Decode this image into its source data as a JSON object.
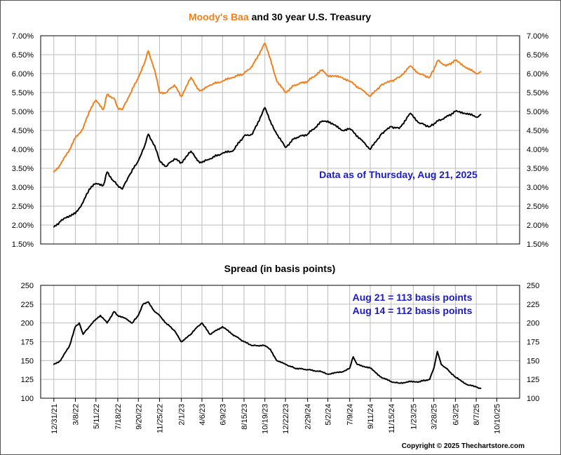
{
  "chart_data": [
    {
      "type": "line",
      "title": "Moody's Baa and 30 year U.S. Treasury",
      "title_parts": {
        "highlight": "Moody's Baa",
        "rest": " and 30 year U.S. Treasury"
      },
      "y_tick_labels": [
        "1.50%",
        "2.00%",
        "2.50%",
        "3.00%",
        "3.50%",
        "4.00%",
        "4.50%",
        "5.00%",
        "5.50%",
        "6.00%",
        "6.50%",
        "7.00%"
      ],
      "ylim": [
        1.5,
        7.0
      ],
      "grid": true,
      "annotation": "Data as of Thursday, Aug 21, 2025",
      "series": [
        {
          "name": "Moody's Baa",
          "color": "#F07F1E",
          "points": [
            [
              "2021-12-31",
              3.4
            ],
            [
              "2022-01-21",
              3.6
            ],
            [
              "2022-02-18",
              4.0
            ],
            [
              "2022-03-08",
              4.3
            ],
            [
              "2022-04-01",
              4.55
            ],
            [
              "2022-04-20",
              5.0
            ],
            [
              "2022-05-11",
              5.3
            ],
            [
              "2022-06-03",
              5.05
            ],
            [
              "2022-06-15",
              5.45
            ],
            [
              "2022-07-06",
              5.35
            ],
            [
              "2022-07-18",
              5.1
            ],
            [
              "2022-08-01",
              5.05
            ],
            [
              "2022-08-22",
              5.4
            ],
            [
              "2022-09-20",
              5.9
            ],
            [
              "2022-10-10",
              6.3
            ],
            [
              "2022-10-21",
              6.6
            ],
            [
              "2022-11-10",
              6.1
            ],
            [
              "2022-11-25",
              5.5
            ],
            [
              "2022-12-15",
              5.5
            ],
            [
              "2023-01-10",
              5.7
            ],
            [
              "2023-02-01",
              5.4
            ],
            [
              "2023-03-03",
              5.9
            ],
            [
              "2023-03-23",
              5.6
            ],
            [
              "2023-04-06",
              5.55
            ],
            [
              "2023-05-01",
              5.7
            ],
            [
              "2023-06-09",
              5.8
            ],
            [
              "2023-07-10",
              5.9
            ],
            [
              "2023-08-15",
              6.0
            ],
            [
              "2023-09-10",
              6.2
            ],
            [
              "2023-10-19",
              6.8
            ],
            [
              "2023-11-05",
              6.4
            ],
            [
              "2023-11-25",
              5.8
            ],
            [
              "2023-12-22",
              5.5
            ],
            [
              "2024-01-20",
              5.7
            ],
            [
              "2024-02-29",
              5.8
            ],
            [
              "2024-04-15",
              6.1
            ],
            [
              "2024-05-02",
              5.95
            ],
            [
              "2024-06-15",
              5.9
            ],
            [
              "2024-07-09",
              5.8
            ],
            [
              "2024-08-20",
              5.55
            ],
            [
              "2024-09-11",
              5.4
            ],
            [
              "2024-10-15",
              5.7
            ],
            [
              "2024-11-15",
              5.8
            ],
            [
              "2024-12-10",
              5.9
            ],
            [
              "2025-01-14",
              6.2
            ],
            [
              "2025-02-10",
              6.0
            ],
            [
              "2025-03-15",
              5.9
            ],
            [
              "2025-04-10",
              6.35
            ],
            [
              "2025-05-05",
              6.2
            ],
            [
              "2025-06-03",
              6.35
            ],
            [
              "2025-07-10",
              6.15
            ],
            [
              "2025-08-07",
              6.0
            ],
            [
              "2025-08-21",
              6.05
            ]
          ]
        },
        {
          "name": "30 year U.S. Treasury",
          "color": "#000000",
          "points": [
            [
              "2021-12-31",
              1.95
            ],
            [
              "2022-01-21",
              2.1
            ],
            [
              "2022-02-18",
              2.25
            ],
            [
              "2022-03-08",
              2.3
            ],
            [
              "2022-04-01",
              2.6
            ],
            [
              "2022-04-20",
              2.95
            ],
            [
              "2022-05-11",
              3.1
            ],
            [
              "2022-06-03",
              3.05
            ],
            [
              "2022-06-15",
              3.4
            ],
            [
              "2022-07-06",
              3.15
            ],
            [
              "2022-07-18",
              3.05
            ],
            [
              "2022-08-01",
              2.95
            ],
            [
              "2022-08-22",
              3.3
            ],
            [
              "2022-09-20",
              3.7
            ],
            [
              "2022-10-10",
              4.1
            ],
            [
              "2022-10-21",
              4.4
            ],
            [
              "2022-11-10",
              4.1
            ],
            [
              "2022-11-25",
              3.7
            ],
            [
              "2022-12-15",
              3.55
            ],
            [
              "2023-01-10",
              3.75
            ],
            [
              "2023-02-01",
              3.65
            ],
            [
              "2023-03-03",
              3.95
            ],
            [
              "2023-03-23",
              3.7
            ],
            [
              "2023-04-06",
              3.65
            ],
            [
              "2023-05-01",
              3.75
            ],
            [
              "2023-06-09",
              3.9
            ],
            [
              "2023-07-10",
              3.95
            ],
            [
              "2023-08-15",
              4.35
            ],
            [
              "2023-09-10",
              4.4
            ],
            [
              "2023-10-19",
              5.1
            ],
            [
              "2023-11-05",
              4.75
            ],
            [
              "2023-11-25",
              4.4
            ],
            [
              "2023-12-22",
              4.05
            ],
            [
              "2024-01-20",
              4.3
            ],
            [
              "2024-02-29",
              4.4
            ],
            [
              "2024-04-15",
              4.75
            ],
            [
              "2024-05-02",
              4.75
            ],
            [
              "2024-06-15",
              4.5
            ],
            [
              "2024-07-09",
              4.55
            ],
            [
              "2024-08-20",
              4.2
            ],
            [
              "2024-09-11",
              4.0
            ],
            [
              "2024-10-15",
              4.4
            ],
            [
              "2024-11-15",
              4.6
            ],
            [
              "2024-12-10",
              4.55
            ],
            [
              "2025-01-14",
              4.95
            ],
            [
              "2025-02-10",
              4.7
            ],
            [
              "2025-03-15",
              4.6
            ],
            [
              "2025-04-10",
              4.75
            ],
            [
              "2025-05-05",
              4.85
            ],
            [
              "2025-06-03",
              5.0
            ],
            [
              "2025-07-10",
              4.95
            ],
            [
              "2025-08-07",
              4.85
            ],
            [
              "2025-08-21",
              4.92
            ]
          ]
        }
      ]
    },
    {
      "type": "line",
      "title": "Spread (in basis points)",
      "y_tick_labels": [
        "100",
        "125",
        "150",
        "175",
        "200",
        "225",
        "250"
      ],
      "ylim": [
        100,
        250
      ],
      "grid": true,
      "annotations": [
        "Aug 21 = 113 basis points",
        "Aug 14 = 112 basis points"
      ],
      "x_tick_labels": [
        "12/31/21",
        "3/8/22",
        "5/11/22",
        "7/18/22",
        "9/20/22",
        "11/25/22",
        "2/1/23",
        "4/6/23",
        "6/9/23",
        "8/15/23",
        "10/19/23",
        "12/22/23",
        "2/29/24",
        "5/2/24",
        "7/9/24",
        "9/11/24",
        "11/15/24",
        "1/23/25",
        "3/28/25",
        "6/3/25",
        "8/7/25",
        "10/10/25"
      ],
      "series": [
        {
          "name": "Spread",
          "color": "#000000",
          "points": [
            [
              "2021-12-31",
              145
            ],
            [
              "2022-01-21",
              150
            ],
            [
              "2022-02-18",
              170
            ],
            [
              "2022-03-08",
              195
            ],
            [
              "2022-03-20",
              200
            ],
            [
              "2022-04-01",
              185
            ],
            [
              "2022-04-20",
              195
            ],
            [
              "2022-05-11",
              205
            ],
            [
              "2022-05-25",
              210
            ],
            [
              "2022-06-15",
              200
            ],
            [
              "2022-07-06",
              215
            ],
            [
              "2022-07-18",
              210
            ],
            [
              "2022-08-15",
              205
            ],
            [
              "2022-09-01",
              200
            ],
            [
              "2022-09-20",
              210
            ],
            [
              "2022-10-05",
              225
            ],
            [
              "2022-10-21",
              228
            ],
            [
              "2022-11-10",
              215
            ],
            [
              "2022-11-25",
              210
            ],
            [
              "2022-12-15",
              200
            ],
            [
              "2023-01-10",
              190
            ],
            [
              "2023-02-01",
              175
            ],
            [
              "2023-03-03",
              185
            ],
            [
              "2023-03-23",
              195
            ],
            [
              "2023-04-06",
              200
            ],
            [
              "2023-05-01",
              185
            ],
            [
              "2023-06-09",
              195
            ],
            [
              "2023-07-10",
              185
            ],
            [
              "2023-08-15",
              175
            ],
            [
              "2023-09-10",
              170
            ],
            [
              "2023-10-19",
              170
            ],
            [
              "2023-11-05",
              165
            ],
            [
              "2023-11-25",
              150
            ],
            [
              "2023-12-22",
              145
            ],
            [
              "2024-01-20",
              140
            ],
            [
              "2024-02-29",
              138
            ],
            [
              "2024-04-15",
              135
            ],
            [
              "2024-05-02",
              132
            ],
            [
              "2024-06-15",
              135
            ],
            [
              "2024-07-09",
              140
            ],
            [
              "2024-07-20",
              155
            ],
            [
              "2024-08-01",
              145
            ],
            [
              "2024-09-11",
              140
            ],
            [
              "2024-10-15",
              128
            ],
            [
              "2024-11-15",
              122
            ],
            [
              "2024-12-10",
              120
            ],
            [
              "2025-01-14",
              122
            ],
            [
              "2025-02-10",
              122
            ],
            [
              "2025-03-15",
              125
            ],
            [
              "2025-03-28",
              140
            ],
            [
              "2025-04-08",
              162
            ],
            [
              "2025-04-20",
              145
            ],
            [
              "2025-05-05",
              140
            ],
            [
              "2025-06-03",
              128
            ],
            [
              "2025-07-10",
              118
            ],
            [
              "2025-08-07",
              115
            ],
            [
              "2025-08-21",
              113
            ]
          ]
        }
      ]
    }
  ],
  "copyright": "Copyright © 2025 Thechartstore.com"
}
